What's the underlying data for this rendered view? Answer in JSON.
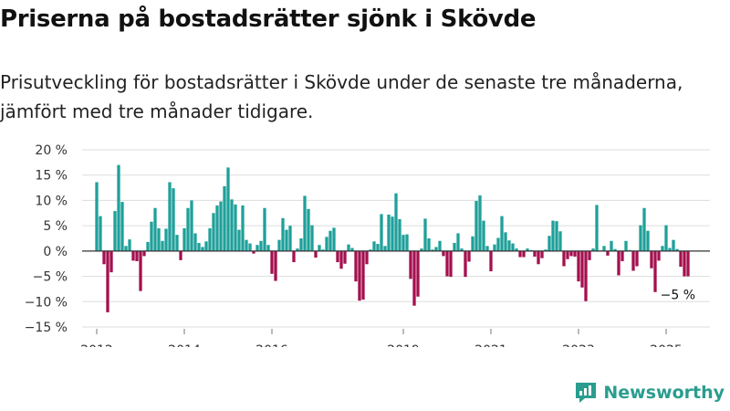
{
  "title": "Priserna på bostadsrätter sjönk i Skövde",
  "subtitle": "Prisutveckling för bostadsrätter i Skövde under de senaste tre månaderna, jämfört med tre månader tidigare.",
  "brand": {
    "name": "Newsworthy",
    "icon": "newsworthy-logo-icon"
  },
  "colors": {
    "positive": "#1fa09a",
    "negative": "#a4104f",
    "grid": "#dddddd",
    "zero_line": "#333333"
  },
  "chart_data": {
    "type": "bar",
    "title": "",
    "xlabel": "",
    "ylabel": "",
    "ylim": [
      -15,
      20
    ],
    "y_ticks": [
      -15,
      -10,
      -5,
      0,
      5,
      10,
      15,
      20
    ],
    "y_tick_labels": [
      "−15 %",
      "−10 %",
      "−5 %",
      "0 %",
      "5 %",
      "10 %",
      "15 %",
      "20 %"
    ],
    "x_ticks": [
      {
        "date": "2012-01",
        "label": "2012"
      },
      {
        "date": "2014-01",
        "label": "2014"
      },
      {
        "date": "2016-01",
        "label": "2016"
      },
      {
        "date": "2019-01",
        "label": "2019"
      },
      {
        "date": "2021-01",
        "label": "2021"
      },
      {
        "date": "2023-01",
        "label": "2023"
      },
      {
        "date": "2025-01",
        "label": "2025"
      }
    ],
    "x_range": [
      "2011-09",
      "2026-01"
    ],
    "grid": true,
    "annotation": {
      "date": "2025-04",
      "text": "−5 %"
    },
    "series": [
      {
        "start": "2012-01",
        "values": [
          13.6,
          6.9,
          -2.6,
          -12.1,
          -4.2,
          7.9,
          17.0,
          9.7,
          1.0,
          2.3,
          -1.9,
          -2.0,
          -7.9,
          -1.0,
          1.8,
          5.8,
          8.5,
          4.5,
          2.0,
          4.4,
          13.6,
          12.4,
          3.2,
          -1.8,
          4.5,
          8.5,
          10.0,
          3.5,
          1.6,
          0.8,
          1.9,
          4.5,
          7.5,
          9.0,
          9.8,
          12.8,
          16.5,
          10.2,
          9.2,
          4.2,
          9.0,
          2.2,
          1.5,
          -0.5,
          1.2,
          2.0,
          8.5,
          1.2,
          -4.5,
          -5.9,
          2.2,
          6.5,
          4.2,
          5.0,
          -2.2,
          0.5,
          2.5,
          10.9,
          8.3,
          5.1,
          -1.3,
          1.2,
          0.3,
          2.8,
          4.0,
          4.6,
          -2.2,
          -3.5,
          -2.5,
          1.3,
          0.6,
          -6.0,
          -9.8,
          -9.6,
          -2.6,
          0.3,
          1.9,
          1.4,
          7.3,
          1.0,
          7.2,
          6.8,
          11.4,
          6.3,
          3.2,
          3.3,
          -5.5,
          -10.8,
          -9.0,
          0.5,
          6.4,
          2.5,
          0.3,
          0.8,
          2.0,
          -1.0,
          -5.0,
          -5.1,
          1.6,
          3.5,
          0.5,
          -5.1,
          -2.1,
          2.9,
          9.9,
          11.0,
          6.0,
          1.0,
          -4.0,
          1.3,
          2.6,
          6.9,
          3.7,
          2.1,
          1.5,
          0.5,
          -1.2,
          -1.2,
          0.5,
          0.2,
          -1.1,
          -2.6,
          -1.4,
          0.3,
          3.0,
          6.0,
          5.9,
          3.9,
          -3.0,
          -1.6,
          -1.0,
          -1.1,
          -6.0,
          -7.2,
          -9.9,
          -1.8,
          0.5,
          9.1,
          0.1,
          1.0,
          -0.9,
          2.0,
          0.4,
          -4.8,
          -2.0,
          2.0,
          0.2,
          -3.9,
          -3.0,
          5.1,
          8.5,
          4.0,
          -3.4,
          -8.1,
          -1.9,
          1.0,
          5.1,
          0.6,
          2.2,
          0.4,
          -3.1,
          -5.0,
          -5.0
        ]
      }
    ]
  }
}
